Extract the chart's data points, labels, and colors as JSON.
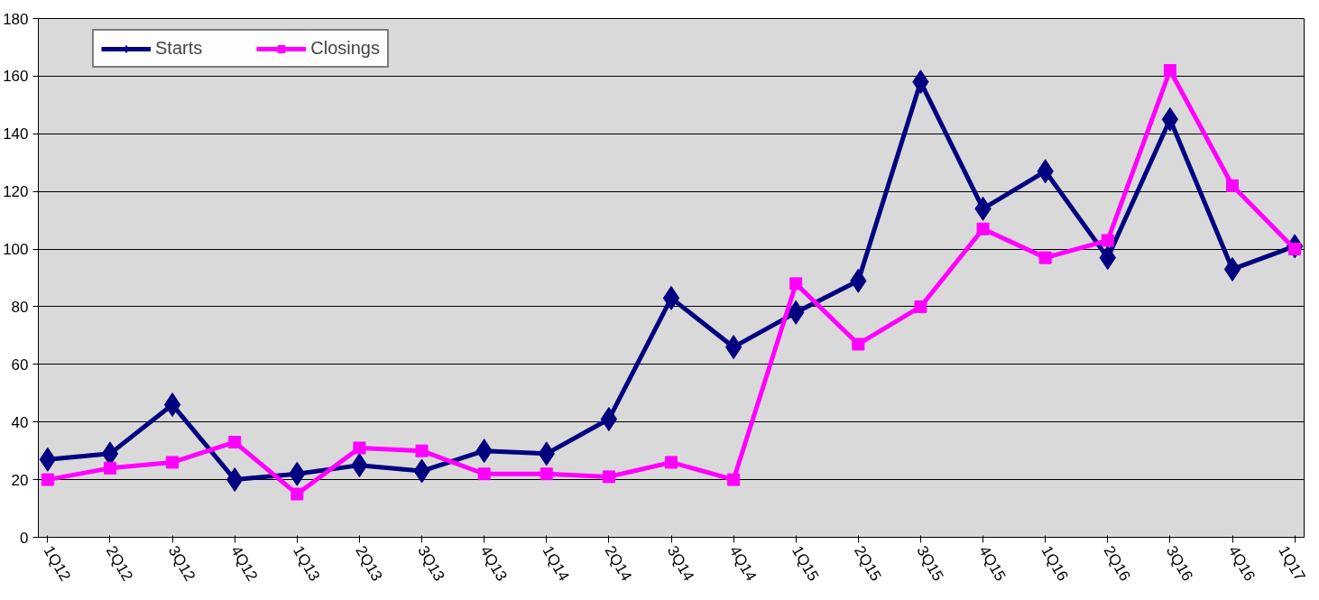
{
  "chart_data": {
    "type": "line",
    "categories": [
      "1Q12",
      "2Q12",
      "3Q12",
      "4Q12",
      "1Q13",
      "2Q13",
      "3Q13",
      "4Q13",
      "1Q14",
      "2Q14",
      "3Q14",
      "4Q14",
      "1Q15",
      "2Q15",
      "3Q15",
      "4Q15",
      "1Q16",
      "2Q16",
      "3Q16",
      "4Q16",
      "1Q17"
    ],
    "series": [
      {
        "name": "Starts",
        "color": "#000080",
        "marker": "diamond",
        "values": [
          27,
          29,
          46,
          20,
          22,
          25,
          23,
          30,
          29,
          41,
          83,
          66,
          78,
          89,
          158,
          114,
          127,
          97,
          145,
          93,
          101
        ]
      },
      {
        "name": "Closings",
        "color": "#ff00ff",
        "marker": "square",
        "values": [
          20,
          24,
          26,
          33,
          15,
          31,
          30,
          22,
          22,
          21,
          26,
          20,
          88,
          67,
          80,
          107,
          97,
          103,
          162,
          122,
          100
        ]
      }
    ],
    "ylim": [
      0,
      180
    ],
    "yticks": [
      0,
      20,
      40,
      60,
      80,
      100,
      120,
      140,
      160,
      180
    ],
    "grid": "y",
    "legend": "top left",
    "line_style": "solid"
  }
}
